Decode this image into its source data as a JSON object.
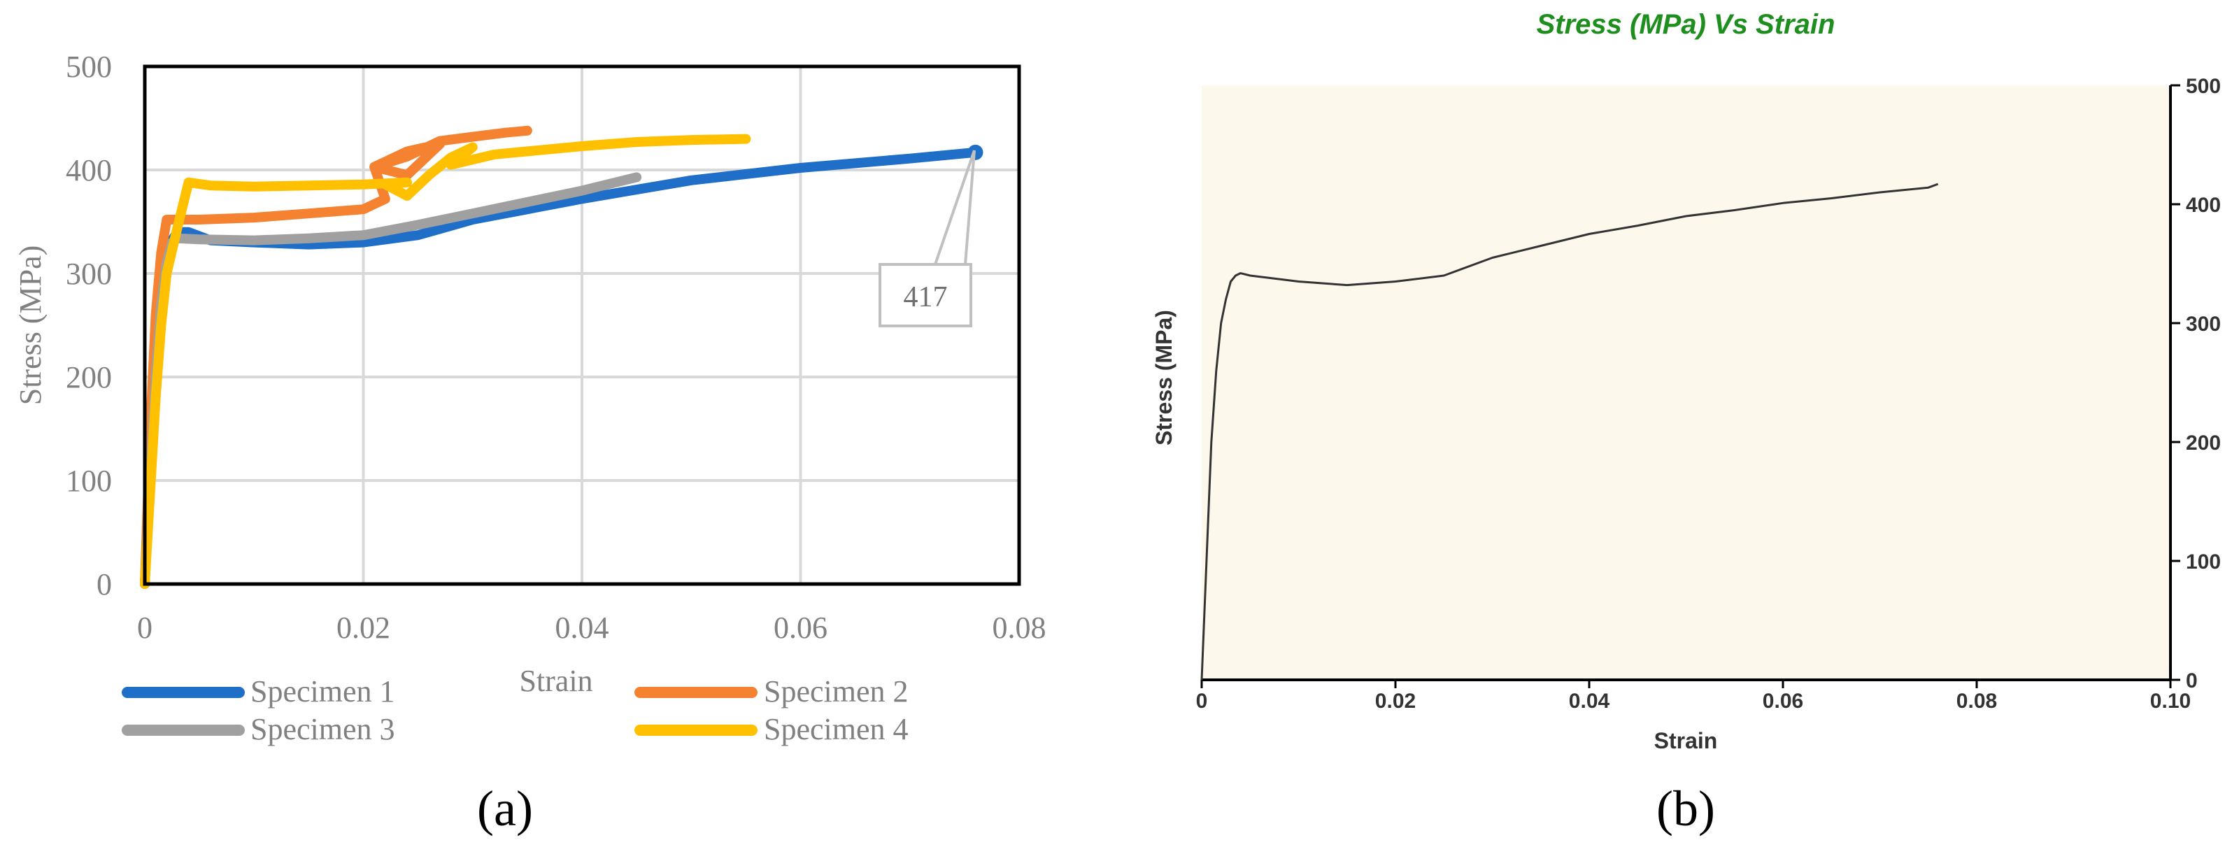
{
  "figure": {
    "panel_a_label": "(a)",
    "panel_b_label": "(b)"
  },
  "chart_data": [
    {
      "type": "line",
      "panel": "(a)",
      "title": "",
      "xlabel": "Strain",
      "ylabel": "Stress  (MPa)",
      "xlim": [
        0,
        0.08
      ],
      "ylim": [
        0,
        500
      ],
      "xticks": [
        0,
        0.02,
        0.04,
        0.06,
        0.08
      ],
      "xtick_labels": [
        "0",
        "0.02",
        "0.04",
        "0.06",
        "0.08"
      ],
      "yticks": [
        0,
        100,
        200,
        300,
        400,
        500
      ],
      "ytick_labels": [
        "0",
        "100",
        "200",
        "300",
        "400",
        "500"
      ],
      "grid": true,
      "legend": "bottom",
      "annotation": {
        "text": "417",
        "x": 0.076,
        "y": 417
      },
      "series": [
        {
          "name": "Specimen 1",
          "color": "#1f6fc9",
          "x": [
            0,
            0.0005,
            0.001,
            0.0015,
            0.002,
            0.003,
            0.004,
            0.006,
            0.01,
            0.015,
            0.02,
            0.025,
            0.03,
            0.035,
            0.04,
            0.05,
            0.06,
            0.07,
            0.076
          ],
          "y": [
            0,
            120,
            230,
            295,
            325,
            340,
            340,
            332,
            330,
            328,
            330,
            337,
            352,
            362,
            372,
            390,
            402,
            411,
            417
          ]
        },
        {
          "name": "Specimen 2",
          "color": "#f58231",
          "x": [
            0,
            0.0005,
            0.001,
            0.0015,
            0.002,
            0.005,
            0.01,
            0.015,
            0.02,
            0.022,
            0.021,
            0.024,
            0.027,
            0.024,
            0.021,
            0.024,
            0.027,
            0.03,
            0.033,
            0.035
          ],
          "y": [
            0,
            150,
            260,
            320,
            352,
            352,
            354,
            358,
            362,
            372,
            403,
            418,
            425,
            395,
            403,
            413,
            428,
            432,
            436,
            438
          ]
        },
        {
          "name": "Specimen 3",
          "color": "#a0a0a0",
          "x": [
            0,
            0.0005,
            0.001,
            0.0015,
            0.002,
            0.0025,
            0.003,
            0.005,
            0.01,
            0.015,
            0.02,
            0.025,
            0.03,
            0.035,
            0.04,
            0.045
          ],
          "y": [
            0,
            100,
            200,
            270,
            310,
            330,
            334,
            333,
            332,
            334,
            337,
            347,
            358,
            369,
            380,
            393
          ]
        },
        {
          "name": "Specimen 4",
          "color": "#ffc000",
          "x": [
            0,
            0.0005,
            0.001,
            0.0015,
            0.002,
            0.003,
            0.004,
            0.006,
            0.01,
            0.015,
            0.02,
            0.024,
            0.022,
            0.024,
            0.026,
            0.028,
            0.03,
            0.028,
            0.03,
            0.032,
            0.035,
            0.04,
            0.045,
            0.05,
            0.055
          ],
          "y": [
            0,
            90,
            180,
            250,
            300,
            345,
            388,
            385,
            384,
            385,
            386,
            388,
            386,
            375,
            395,
            412,
            422,
            405,
            410,
            415,
            418,
            423,
            427,
            429,
            430
          ]
        }
      ]
    },
    {
      "type": "line",
      "panel": "(b)",
      "title": "Stress (MPa) Vs Strain",
      "xlabel": "Strain",
      "ylabel": "Stress (MPa)",
      "xlim": [
        0,
        0.1
      ],
      "ylim": [
        0,
        500
      ],
      "xticks": [
        0,
        0.02,
        0.04,
        0.06,
        0.08,
        0.1
      ],
      "xtick_labels": [
        "0",
        "0.02",
        "0.04",
        "0.06",
        "0.08",
        "0.10"
      ],
      "yticks": [
        0,
        100,
        200,
        300,
        400,
        500
      ],
      "ytick_labels": [
        "0",
        "100",
        "200",
        "300",
        "400",
        "500"
      ],
      "grid": false,
      "colors": {
        "title": "#1e8f1e",
        "plot_background": "#fdf8ec",
        "line": "#333333"
      },
      "series": [
        {
          "x": [
            0,
            0.0005,
            0.001,
            0.0015,
            0.002,
            0.0025,
            0.003,
            0.0035,
            0.004,
            0.005,
            0.007,
            0.01,
            0.015,
            0.02,
            0.025,
            0.03,
            0.035,
            0.04,
            0.045,
            0.05,
            0.055,
            0.06,
            0.065,
            0.07,
            0.075,
            0.076
          ],
          "y": [
            0,
            100,
            200,
            260,
            300,
            320,
            335,
            340,
            342,
            340,
            338,
            335,
            332,
            335,
            340,
            355,
            365,
            375,
            382,
            390,
            395,
            401,
            405,
            410,
            414,
            417
          ]
        }
      ]
    }
  ]
}
